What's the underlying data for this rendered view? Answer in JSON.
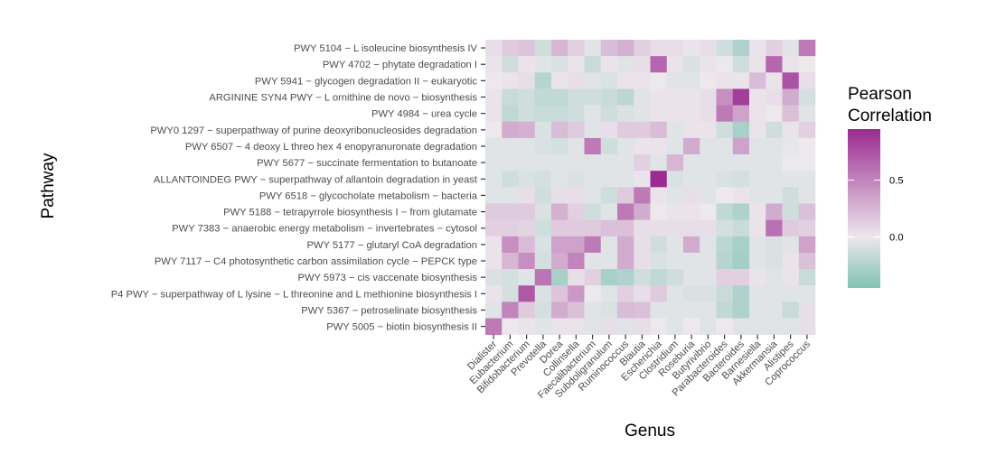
{
  "chart_data": {
    "type": "heatmap",
    "xlabel": "Genus",
    "ylabel": "Pathway",
    "legend": {
      "title_lines": [
        "Pearson",
        "Correlation"
      ],
      "ticks": [
        0.5,
        0.0
      ],
      "tick_labels": [
        "0.5",
        "0.0"
      ],
      "min": -0.45,
      "max": 0.95,
      "placement": "right"
    },
    "colors": {
      "low": "#7fc2b3",
      "mid": "#ece8ec",
      "high": "#9b2a91"
    },
    "x_categories": [
      "Dialister",
      "Eubacterium",
      "Bifidobacterium",
      "Prevotella",
      "Dorea",
      "Collinsella",
      "Faecalibacterium",
      "Subdoligranulum",
      "Ruminococcus",
      "Blautia",
      "Escherichia",
      "Clostridium",
      "Roseburia",
      "Butyrivibrio",
      "Parabacteroides",
      "Bacteroides",
      "Barnesiella",
      "Akkermansia",
      "Alistipes",
      "Coprococcus"
    ],
    "y_categories": [
      "PWY 5104 − L isoleucine biosynthesis IV",
      "PWY 4702 − phytate degradation I",
      "PWY 5941 − glycogen degradation II − eukaryotic",
      "ARGININE SYN4 PWY − L ornithine de novo − biosynthesis",
      "PWY 4984 − urea cycle",
      "PWY0 1297 − superpathway of purine deoxyribonucleosides degradation",
      "PWY 6507 − 4 deoxy L threo hex 4 enopyranuronate degradation",
      "PWY 5677 − succinate fermentation to butanoate",
      "ALLANTOINDEG PWY − superpathway of allantoin degradation in yeast",
      "PWY 6518 − glycocholate metabolism − bacteria",
      "PWY 5188 − tetrapyrrole biosynthesis I − from glutamate",
      "PWY 7383 − anaerobic energy metabolism − invertebrates − cytosol",
      "PWY 5177 − glutaryl CoA degradation",
      "PWY 7117 − C4 photosynthetic carbon assimilation cycle − PEPCK type",
      "PWY 5973 − cis vaccenate biosynthesis",
      "P4 PWY − superpathway of L lysine − L threonine and L methionine biosynthesis I",
      "PWY 5367 − petroselinate biosynthesis",
      "PWY 5005 − biotin biosynthesis II"
    ],
    "values": [
      [
        0.05,
        0.15,
        0.18,
        -0.12,
        0.25,
        0.12,
        -0.05,
        0.22,
        0.28,
        0.12,
        0.05,
        0.05,
        0.02,
        0.05,
        -0.12,
        -0.25,
        0.02,
        0.12,
        -0.05,
        0.55
      ],
      [
        0.02,
        -0.12,
        0.02,
        -0.05,
        -0.08,
        0.02,
        -0.15,
        0.02,
        -0.05,
        0.05,
        0.65,
        0.02,
        -0.08,
        0.02,
        0.0,
        -0.12,
        0.02,
        0.65,
        0.02,
        0.0
      ],
      [
        0.0,
        0.02,
        0.05,
        -0.22,
        0.02,
        0.05,
        -0.05,
        -0.08,
        0.02,
        0.02,
        0.0,
        -0.05,
        -0.05,
        0.0,
        0.02,
        0.02,
        0.22,
        0.02,
        0.75,
        0.05
      ],
      [
        0.02,
        -0.15,
        -0.12,
        -0.18,
        -0.18,
        -0.12,
        -0.12,
        -0.15,
        -0.2,
        -0.05,
        0.02,
        0.02,
        0.02,
        0.05,
        0.45,
        0.85,
        0.02,
        0.05,
        0.3,
        -0.1
      ],
      [
        0.02,
        -0.18,
        -0.12,
        -0.15,
        -0.15,
        -0.12,
        -0.05,
        -0.12,
        -0.08,
        -0.05,
        0.02,
        0.02,
        0.02,
        0.05,
        0.55,
        0.35,
        0.02,
        0.0,
        0.2,
        -0.05
      ],
      [
        0.0,
        0.3,
        0.28,
        -0.08,
        0.22,
        0.15,
        -0.05,
        0.05,
        0.15,
        0.15,
        0.22,
        -0.05,
        0.02,
        0.02,
        -0.12,
        -0.28,
        0.02,
        -0.12,
        0.02,
        0.12
      ],
      [
        -0.05,
        -0.05,
        -0.05,
        -0.08,
        -0.1,
        -0.05,
        0.55,
        -0.12,
        -0.05,
        0.02,
        0.02,
        -0.05,
        0.3,
        -0.05,
        -0.05,
        0.35,
        -0.05,
        -0.05,
        -0.02,
        0.0
      ],
      [
        -0.05,
        -0.05,
        -0.05,
        -0.05,
        -0.05,
        -0.05,
        -0.05,
        -0.05,
        -0.05,
        0.12,
        -0.05,
        0.25,
        -0.05,
        -0.05,
        -0.05,
        -0.05,
        -0.05,
        -0.05,
        0.0,
        0.0
      ],
      [
        -0.05,
        -0.12,
        -0.08,
        -0.1,
        -0.05,
        -0.08,
        -0.05,
        -0.05,
        -0.05,
        0.02,
        0.95,
        -0.08,
        -0.05,
        -0.05,
        -0.08,
        -0.1,
        -0.05,
        -0.05,
        -0.05,
        -0.05
      ],
      [
        -0.05,
        -0.05,
        0.05,
        -0.12,
        0.05,
        0.05,
        -0.05,
        -0.12,
        0.15,
        0.55,
        0.02,
        -0.05,
        0.05,
        -0.05,
        0.0,
        0.02,
        -0.05,
        -0.05,
        -0.12,
        -0.05
      ],
      [
        0.15,
        0.15,
        0.15,
        -0.08,
        0.28,
        0.12,
        -0.12,
        -0.05,
        0.55,
        0.3,
        0.0,
        0.02,
        0.02,
        0.0,
        -0.18,
        -0.25,
        0.02,
        0.3,
        -0.12,
        0.2
      ],
      [
        0.12,
        0.12,
        0.1,
        -0.12,
        0.15,
        0.15,
        0.15,
        0.2,
        0.2,
        0.05,
        0.05,
        0.05,
        0.05,
        0.05,
        -0.1,
        -0.15,
        0.02,
        0.6,
        0.15,
        0.12
      ],
      [
        0.02,
        0.45,
        0.22,
        -0.08,
        0.35,
        0.35,
        0.55,
        -0.05,
        0.3,
        0.05,
        -0.12,
        -0.05,
        0.3,
        -0.05,
        -0.2,
        -0.28,
        -0.05,
        -0.08,
        -0.05,
        0.35
      ],
      [
        0.02,
        0.25,
        0.45,
        -0.1,
        0.3,
        0.5,
        -0.05,
        -0.05,
        0.3,
        0.05,
        -0.08,
        -0.05,
        -0.05,
        -0.05,
        -0.22,
        -0.3,
        -0.05,
        -0.08,
        0.02,
        0.2
      ],
      [
        -0.08,
        -0.1,
        -0.05,
        0.58,
        -0.28,
        0.05,
        0.12,
        -0.28,
        -0.25,
        -0.12,
        -0.18,
        -0.12,
        -0.05,
        -0.05,
        0.12,
        0.12,
        0.02,
        -0.05,
        0.02,
        -0.15
      ],
      [
        0.02,
        -0.1,
        0.72,
        -0.08,
        0.18,
        0.4,
        0.0,
        -0.05,
        0.12,
        0.05,
        0.15,
        -0.05,
        -0.08,
        -0.08,
        -0.15,
        -0.25,
        -0.05,
        -0.05,
        -0.05,
        -0.05
      ],
      [
        -0.05,
        0.5,
        0.15,
        -0.1,
        0.3,
        0.2,
        -0.05,
        -0.08,
        0.22,
        0.2,
        -0.05,
        -0.05,
        -0.05,
        -0.05,
        -0.18,
        -0.25,
        -0.05,
        -0.05,
        -0.15,
        0.05
      ],
      [
        0.55,
        0.0,
        0.02,
        -0.05,
        0.02,
        0.02,
        -0.05,
        0.05,
        -0.05,
        0.05,
        0.0,
        -0.05,
        0.0,
        -0.05,
        0.0,
        -0.05,
        -0.05,
        -0.05,
        -0.05,
        0.05
      ]
    ]
  }
}
